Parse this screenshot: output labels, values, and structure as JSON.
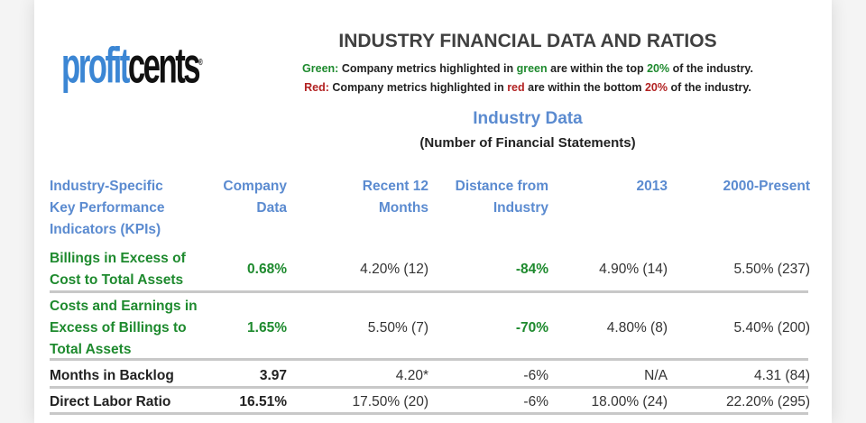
{
  "logo": {
    "blue": "profit",
    "black": "cents",
    "mark": "®"
  },
  "title": "INDUSTRY FINANCIAL DATA AND RATIOS",
  "legend": {
    "green_label": "Green:",
    "green_pre": "Company metrics highlighted in ",
    "green_word": "green",
    "green_mid": " are within the top ",
    "green_pct": "20%",
    "green_post": " of the industry.",
    "red_label": "Red:",
    "red_pre": "Company metrics highlighted in ",
    "red_word": "red",
    "red_mid": " are within the bottom ",
    "red_pct": "20%",
    "red_post": " of the industry."
  },
  "section_title": "Industry Data",
  "section_subtitle": "(Number of Financial Statements)",
  "colors": {
    "green": "#1e8a2e",
    "red": "#b22222",
    "header": "#5b8bd0"
  },
  "headers": {
    "kpi": [
      "Industry-Specific",
      "Key Performance",
      "Indicators (KPIs)"
    ],
    "company": [
      "Company",
      "Data"
    ],
    "recent": [
      "Recent 12",
      "Months"
    ],
    "distance": [
      "Distance from",
      "Industry"
    ],
    "y2013": [
      "2013"
    ],
    "present": [
      "2000-Present"
    ]
  },
  "rows": [
    {
      "kpi": [
        "Billings in Excess of",
        "Cost to Total Assets"
      ],
      "highlight": "green",
      "company": "0.68%",
      "recent": "4.20% (12)",
      "distance": "-84%",
      "y2013": "4.90%  (14)",
      "present": "5.50% (237)"
    },
    {
      "kpi": [
        "Costs and Earnings in",
        "Excess of Billings to",
        "Total Assets"
      ],
      "highlight": "green",
      "company": "1.65%",
      "recent": "5.50% (7)",
      "distance": "-70%",
      "y2013": "4.80%  (8)",
      "present": "5.40% (200)"
    },
    {
      "kpi": [
        "Months in Backlog"
      ],
      "highlight": "none",
      "company": "3.97",
      "recent": "4.20*",
      "distance": "-6%",
      "y2013": "N/A",
      "present": "4.31 (84)"
    },
    {
      "kpi": [
        "Direct Labor Ratio"
      ],
      "highlight": "none",
      "company": "16.51%",
      "recent": "17.50% (20)",
      "distance": "-6%",
      "y2013": "18.00%  (24)",
      "present": "22.20% (295)"
    }
  ]
}
